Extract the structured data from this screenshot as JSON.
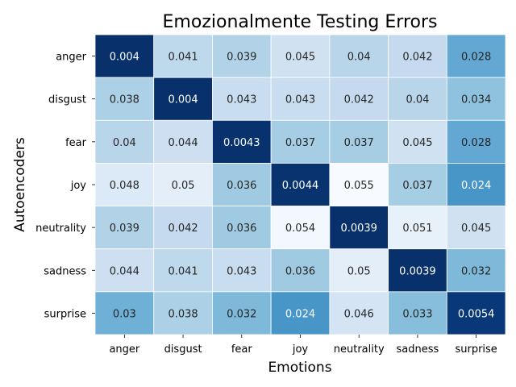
{
  "chart_data": {
    "type": "heatmap",
    "title": "Emozionalmente Testing Errors",
    "xlabel": "Emotions",
    "ylabel": "Autoencoders",
    "x_categories": [
      "anger",
      "disgust",
      "fear",
      "joy",
      "neutrality",
      "sadness",
      "surprise"
    ],
    "y_categories": [
      "anger",
      "disgust",
      "fear",
      "joy",
      "neutrality",
      "sadness",
      "surprise"
    ],
    "values": [
      [
        0.004,
        0.041,
        0.039,
        0.045,
        0.04,
        0.042,
        0.028
      ],
      [
        0.038,
        0.004,
        0.043,
        0.043,
        0.042,
        0.04,
        0.034
      ],
      [
        0.04,
        0.044,
        0.0043,
        0.037,
        0.037,
        0.045,
        0.028
      ],
      [
        0.048,
        0.05,
        0.036,
        0.0044,
        0.055,
        0.037,
        0.024
      ],
      [
        0.039,
        0.042,
        0.036,
        0.054,
        0.0039,
        0.051,
        0.045
      ],
      [
        0.044,
        0.041,
        0.043,
        0.036,
        0.05,
        0.0039,
        0.032
      ],
      [
        0.03,
        0.038,
        0.032,
        0.024,
        0.046,
        0.033,
        0.0054
      ]
    ],
    "labels": [
      [
        "0.004",
        "0.041",
        "0.039",
        "0.045",
        "0.04",
        "0.042",
        "0.028"
      ],
      [
        "0.038",
        "0.004",
        "0.043",
        "0.043",
        "0.042",
        "0.04",
        "0.034"
      ],
      [
        "0.04",
        "0.044",
        "0.0043",
        "0.037",
        "0.037",
        "0.045",
        "0.028"
      ],
      [
        "0.048",
        "0.05",
        "0.036",
        "0.0044",
        "0.055",
        "0.037",
        "0.024"
      ],
      [
        "0.039",
        "0.042",
        "0.036",
        "0.054",
        "0.0039",
        "0.051",
        "0.045"
      ],
      [
        "0.044",
        "0.041",
        "0.043",
        "0.036",
        "0.05",
        "0.0039",
        "0.032"
      ],
      [
        "0.03",
        "0.038",
        "0.032",
        "0.024",
        "0.046",
        "0.033",
        "0.0054"
      ]
    ],
    "colormap": "Blues_reversed",
    "color_low": "#08306b",
    "color_high": "#f7fbff",
    "grid": false,
    "legend": "none"
  }
}
